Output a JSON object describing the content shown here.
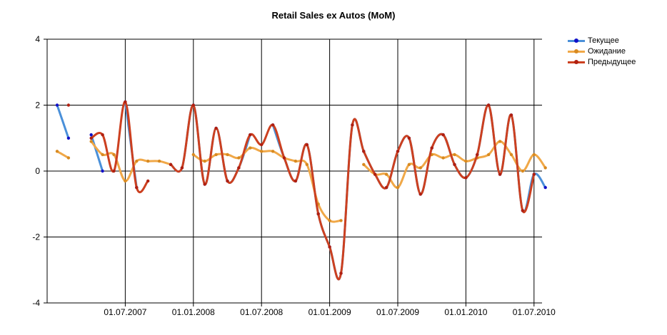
{
  "chart_data": {
    "type": "line",
    "title": "Retail Sales ex Autos (MoM)",
    "xlabel": "",
    "ylabel": "",
    "ylim": [
      -4,
      4
    ],
    "yticks": [
      -4,
      -2,
      0,
      2,
      4
    ],
    "x_tick_labels": [
      "01.07.2007",
      "01.01.2008",
      "01.07.2008",
      "01.01.2009",
      "01.07.2009",
      "01.01.2010",
      "01.07.2010"
    ],
    "grid": true,
    "legend_position": "top-right",
    "series": [
      {
        "name": "Текущее",
        "color": "#4a90d9",
        "points": [
          [
            "2007-01",
            2.0
          ],
          [
            "2007-02",
            1.0
          ],
          [
            "2007-04",
            1.1
          ],
          [
            "2007-05",
            0.0
          ],
          [
            "2007-07",
            2.1
          ],
          [
            "2007-08",
            -0.5
          ],
          [
            "2007-11",
            0.2
          ],
          [
            "2007-12",
            0.1
          ],
          [
            "2008-01",
            2.0
          ],
          [
            "2008-02",
            -0.4
          ],
          [
            "2008-03",
            1.3
          ],
          [
            "2008-04",
            -0.3
          ],
          [
            "2008-05",
            0.1
          ],
          [
            "2008-06",
            1.1
          ],
          [
            "2008-08",
            1.4
          ],
          [
            "2008-09",
            0.4
          ],
          [
            "2008-10",
            -0.3
          ],
          [
            "2008-11",
            0.8
          ],
          [
            "2008-12",
            -1.3
          ],
          [
            "2009-01",
            -2.3
          ],
          [
            "2009-02",
            -3.1
          ],
          [
            "2009-03",
            1.4
          ],
          [
            "2009-04",
            0.6
          ],
          [
            "2009-05",
            -0.1
          ],
          [
            "2009-06",
            -0.5
          ],
          [
            "2009-07",
            0.6
          ],
          [
            "2009-08",
            1.0
          ],
          [
            "2009-09",
            -0.7
          ],
          [
            "2009-10",
            0.7
          ],
          [
            "2009-11",
            1.1
          ],
          [
            "2009-12",
            0.2
          ],
          [
            "2010-01",
            -0.2
          ],
          [
            "2010-02",
            0.5
          ],
          [
            "2010-03",
            2.0
          ],
          [
            "2010-04",
            -0.1
          ],
          [
            "2010-05",
            1.7
          ],
          [
            "2010-06",
            -1.2
          ],
          [
            "2010-07",
            -0.1
          ],
          [
            "2010-08",
            -0.5
          ]
        ]
      },
      {
        "name": "Ожидание",
        "color": "#f0a848",
        "points": [
          [
            "2007-01",
            0.6
          ],
          [
            "2007-02",
            0.4
          ],
          [
            "2007-04",
            0.9
          ],
          [
            "2007-05",
            0.5
          ],
          [
            "2007-06",
            0.5
          ],
          [
            "2007-07",
            -0.3
          ],
          [
            "2007-08",
            0.3
          ],
          [
            "2007-09",
            0.3
          ],
          [
            "2007-10",
            0.3
          ],
          [
            "2007-11",
            0.2
          ],
          [
            "2008-01",
            0.5
          ],
          [
            "2008-02",
            0.3
          ],
          [
            "2008-03",
            0.5
          ],
          [
            "2008-04",
            0.5
          ],
          [
            "2008-05",
            0.4
          ],
          [
            "2008-06",
            0.7
          ],
          [
            "2008-07",
            0.6
          ],
          [
            "2008-08",
            0.6
          ],
          [
            "2008-09",
            0.4
          ],
          [
            "2008-10",
            0.3
          ],
          [
            "2008-11",
            0.2
          ],
          [
            "2008-12",
            -1.0
          ],
          [
            "2009-01",
            -1.5
          ],
          [
            "2009-02",
            -1.5
          ],
          [
            "2009-04",
            0.2
          ],
          [
            "2009-05",
            -0.1
          ],
          [
            "2009-06",
            -0.1
          ],
          [
            "2009-07",
            -0.5
          ],
          [
            "2009-08",
            0.2
          ],
          [
            "2009-09",
            0.1
          ],
          [
            "2009-10",
            0.5
          ],
          [
            "2009-11",
            0.4
          ],
          [
            "2009-12",
            0.5
          ],
          [
            "2010-01",
            0.3
          ],
          [
            "2010-02",
            0.4
          ],
          [
            "2010-03",
            0.5
          ],
          [
            "2010-04",
            0.9
          ],
          [
            "2010-05",
            0.5
          ],
          [
            "2010-06",
            0.0
          ],
          [
            "2010-07",
            0.5
          ],
          [
            "2010-08",
            0.1
          ]
        ]
      },
      {
        "name": "Предыдущее",
        "color": "#cc4020",
        "points": [
          [
            "2007-02",
            2.0
          ],
          [
            "2007-04",
            1.0
          ],
          [
            "2007-05",
            1.1
          ],
          [
            "2007-06",
            0.0
          ],
          [
            "2007-07",
            2.1
          ],
          [
            "2007-08",
            -0.5
          ],
          [
            "2007-09",
            -0.3
          ],
          [
            "2007-11",
            0.2
          ],
          [
            "2007-12",
            0.1
          ],
          [
            "2008-01",
            2.0
          ],
          [
            "2008-02",
            -0.4
          ],
          [
            "2008-03",
            1.3
          ],
          [
            "2008-04",
            -0.3
          ],
          [
            "2008-05",
            0.1
          ],
          [
            "2008-06",
            1.1
          ],
          [
            "2008-07",
            0.8
          ],
          [
            "2008-08",
            1.4
          ],
          [
            "2008-09",
            0.4
          ],
          [
            "2008-10",
            -0.3
          ],
          [
            "2008-11",
            0.8
          ],
          [
            "2008-12",
            -1.3
          ],
          [
            "2009-01",
            -2.3
          ],
          [
            "2009-02",
            -3.1
          ],
          [
            "2009-03",
            1.4
          ],
          [
            "2009-04",
            0.6
          ],
          [
            "2009-05",
            -0.1
          ],
          [
            "2009-06",
            -0.5
          ],
          [
            "2009-07",
            0.6
          ],
          [
            "2009-08",
            1.0
          ],
          [
            "2009-09",
            -0.7
          ],
          [
            "2009-10",
            0.7
          ],
          [
            "2009-11",
            1.1
          ],
          [
            "2009-12",
            0.2
          ],
          [
            "2010-01",
            -0.2
          ],
          [
            "2010-02",
            0.5
          ],
          [
            "2010-03",
            2.0
          ],
          [
            "2010-04",
            -0.1
          ],
          [
            "2010-05",
            1.7
          ],
          [
            "2010-06",
            -1.2
          ],
          [
            "2010-07",
            -0.1
          ]
        ]
      }
    ]
  }
}
